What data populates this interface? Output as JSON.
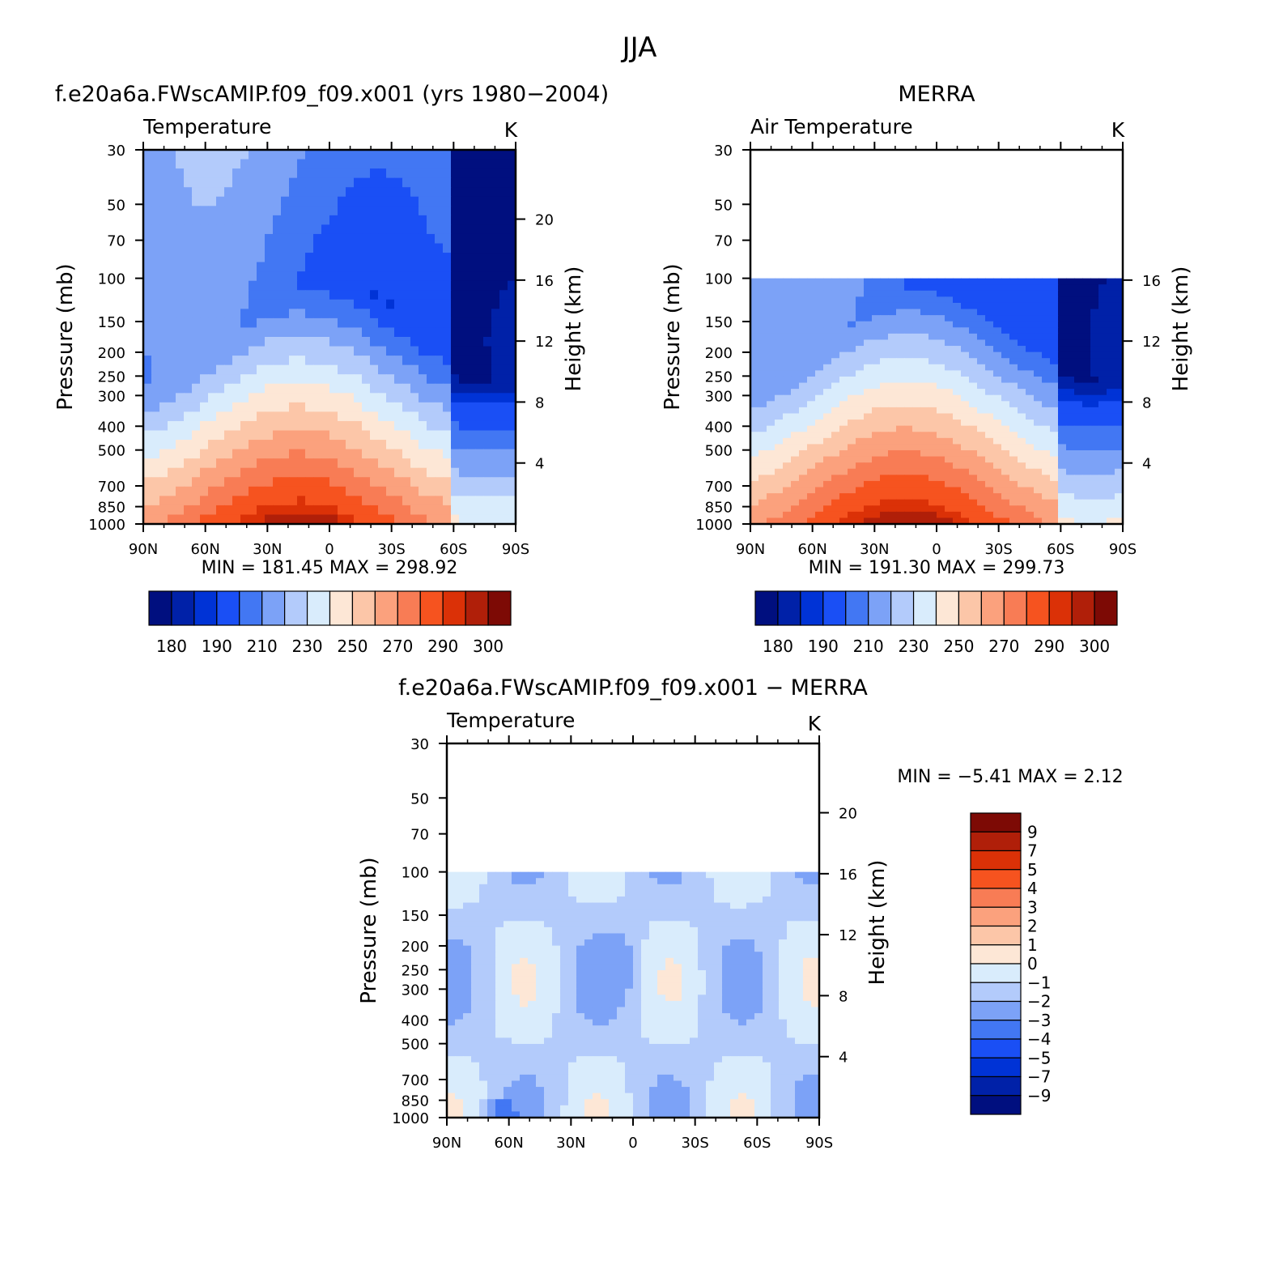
{
  "figure": {
    "title": "JJA"
  },
  "chart_data": [
    {
      "type": "heatmap",
      "panel_title": "f.e20a6a.FWscAMIP.f09_f09.x001 (yrs 1980−2004)",
      "variable": "Temperature",
      "units": "K",
      "min_label": "MIN  =  181.45",
      "max_label": "MAX  =  298.92",
      "min": 181.45,
      "max": 298.92,
      "x_ticks": [
        "90N",
        "60N",
        "30N",
        "0",
        "30S",
        "60S",
        "90S"
      ],
      "y_ticks": [
        "30",
        "50",
        "70",
        "100",
        "150",
        "200",
        "250",
        "300",
        "400",
        "500",
        "700",
        "850",
        "1000"
      ],
      "y_label": "Pressure (mb)",
      "y2_ticks": [
        "20",
        "16",
        "12",
        "8",
        "4"
      ],
      "y2_label": "Height (km)",
      "colorbar_labels": [
        "180",
        "190",
        "210",
        "230",
        "250",
        "270",
        "290",
        "300"
      ],
      "top_pressure": 30
    },
    {
      "type": "heatmap",
      "panel_title": "MERRA",
      "variable": "Air Temperature",
      "units": "K",
      "min_label": "MIN  =  191.30",
      "max_label": "MAX  =  299.73",
      "min": 191.3,
      "max": 299.73,
      "x_ticks": [
        "90N",
        "60N",
        "30N",
        "0",
        "30S",
        "60S",
        "90S"
      ],
      "y_ticks": [
        "30",
        "50",
        "70",
        "100",
        "150",
        "200",
        "250",
        "300",
        "400",
        "500",
        "700",
        "850",
        "1000"
      ],
      "y_label": "Pressure (mb)",
      "y2_ticks": [
        "16",
        "12",
        "8",
        "4"
      ],
      "y2_label": "Height (km)",
      "colorbar_labels": [
        "180",
        "190",
        "210",
        "230",
        "250",
        "270",
        "290",
        "300"
      ],
      "top_pressure": 100
    },
    {
      "type": "heatmap",
      "panel_title": "f.e20a6a.FWscAMIP.f09_f09.x001 − MERRA",
      "variable": "Temperature",
      "units": "K",
      "min_label": "MIN  =    −5.41",
      "max_label": "MAX  =      2.12",
      "min": -5.41,
      "max": 2.12,
      "x_ticks": [
        "90N",
        "60N",
        "30N",
        "0",
        "30S",
        "60S",
        "90S"
      ],
      "y_ticks": [
        "30",
        "50",
        "70",
        "100",
        "150",
        "200",
        "250",
        "300",
        "400",
        "500",
        "700",
        "850",
        "1000"
      ],
      "y_label": "Pressure (mb)",
      "y2_ticks": [
        "20",
        "16",
        "12",
        "8",
        "4"
      ],
      "y2_label": "Height (km)",
      "colorbar_labels": [
        "9",
        "7",
        "5",
        "4",
        "3",
        "2",
        "1",
        "0",
        "−1",
        "−2",
        "−3",
        "−4",
        "−5",
        "−7",
        "−9"
      ],
      "top_pressure": 100
    }
  ],
  "colors": {
    "temperature_palette": [
      "#000f7f",
      "#0021a8",
      "#0033d6",
      "#1a4ff5",
      "#4277f3",
      "#7ca2f7",
      "#b3cbfb",
      "#d9ecfc",
      "#fde7d6",
      "#fcc6a8",
      "#fba17d",
      "#f87c55",
      "#f6531f",
      "#db3107",
      "#b01f09",
      "#7d0a05"
    ],
    "difference_palette": [
      "#000f7f",
      "#0021a8",
      "#0033d6",
      "#1a4ff5",
      "#4277f3",
      "#7ca2f7",
      "#b3cbfb",
      "#d9ecfc",
      "#fde7d6",
      "#fcc6a8",
      "#fba17d",
      "#f87c55",
      "#f6531f",
      "#db3107",
      "#b01f09",
      "#7d0a05"
    ]
  }
}
